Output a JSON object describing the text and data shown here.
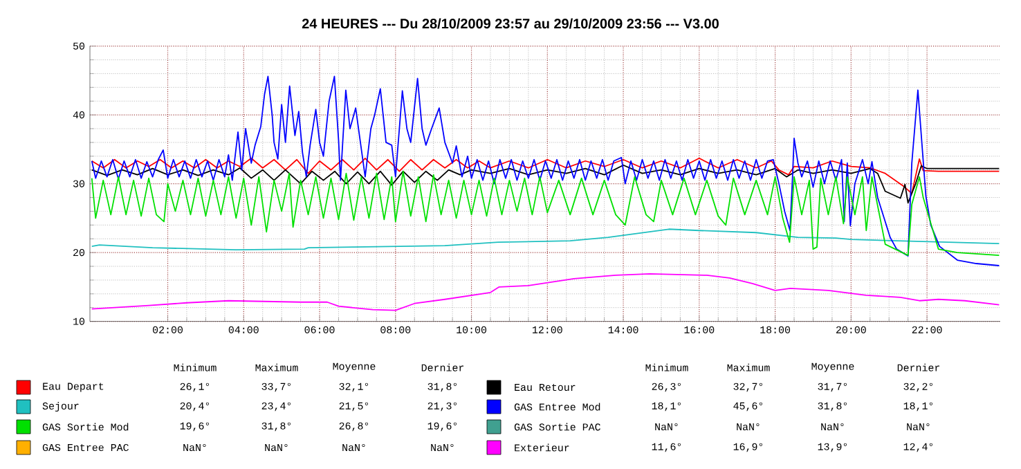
{
  "chart_data": {
    "type": "line",
    "title": "24 HEURES --- Du 28/10/2009 23:57 au 29/10/2009 23:56 --- V3.00",
    "xlim": [
      -0.05,
      23.93
    ],
    "ylim": [
      10,
      50
    ],
    "xticks": [
      {
        "value": 2,
        "label": "02:00"
      },
      {
        "value": 4,
        "label": "04:00"
      },
      {
        "value": 6,
        "label": "06:00"
      },
      {
        "value": 8,
        "label": "08:00"
      },
      {
        "value": 10,
        "label": "10:00"
      },
      {
        "value": 12,
        "label": "12:00"
      },
      {
        "value": 14,
        "label": "14:00"
      },
      {
        "value": 16,
        "label": "16:00"
      },
      {
        "value": 18,
        "label": "18:00"
      },
      {
        "value": 20,
        "label": "20:00"
      },
      {
        "value": 22,
        "label": "22:00"
      }
    ],
    "yticks": [
      10,
      20,
      30,
      40,
      50
    ],
    "grid": true,
    "legend": "bottom",
    "marker": "none",
    "line_style": "solid",
    "annotations": [
      "Minimum",
      "Maximum",
      "Moyenne",
      "Dernier",
      "Minimum",
      "Maximum",
      "Moyenne",
      "Dernier",
      "26,1°",
      "33,7°",
      "32,1°",
      "31,8°",
      "26,3°",
      "32,7°",
      "31,7°",
      "32,2°",
      "20,4°",
      "23,4°",
      "21,5°",
      "21,3°",
      "18,1°",
      "45,6°",
      "31,8°",
      "18,1°",
      "19,6°",
      "31,8°",
      "26,8°",
      "19,6°",
      "NaN°",
      "NaN°",
      "NaN°",
      "NaN°",
      "NaN°",
      "NaN°",
      "NaN°",
      "NaN°",
      "11,6°",
      "16,9°",
      "13,9°",
      "12,4°"
    ],
    "series": [
      {
        "name": "Eau Depart",
        "color": "#ff0000",
        "x": [
          0,
          0.3,
          0.6,
          0.9,
          1.2,
          1.5,
          1.8,
          2.1,
          2.4,
          2.7,
          3.0,
          3.3,
          3.6,
          3.9,
          4.2,
          4.5,
          4.8,
          5.1,
          5.4,
          5.7,
          6.0,
          6.3,
          6.6,
          6.9,
          7.2,
          7.5,
          7.8,
          8.1,
          8.4,
          8.7,
          9.0,
          9.3,
          9.6,
          9.9,
          10.2,
          10.5,
          11,
          11.5,
          12,
          12.5,
          13,
          13.5,
          14,
          14.5,
          15,
          15.5,
          16,
          16.5,
          17,
          17.5,
          17.9,
          18.1,
          18.35,
          18.5,
          19,
          19.5,
          20,
          20.5,
          20.9,
          21.39,
          21.6,
          21.8,
          21.9,
          22.3,
          23.9
        ],
        "values": [
          33.3,
          32.3,
          33.5,
          32.3,
          33.3,
          32.5,
          33.5,
          32.3,
          33.3,
          32.3,
          33.5,
          32.3,
          33.3,
          32.5,
          33.7,
          32.3,
          33.5,
          32,
          33.5,
          31.5,
          33.3,
          32,
          33.5,
          32,
          33.7,
          32,
          33.5,
          31.8,
          33.5,
          32,
          33.5,
          32.3,
          33.5,
          32.3,
          33.3,
          32.3,
          33.3,
          32.3,
          33.5,
          32.3,
          33.3,
          32.5,
          33.5,
          32.3,
          33.3,
          32.3,
          33.7,
          32.3,
          33.5,
          32.3,
          33.3,
          32,
          31.3,
          32.5,
          32.3,
          33.3,
          32.5,
          32.3,
          31.5,
          29.6,
          28.6,
          33.6,
          31.9,
          31.8,
          31.8
        ]
      },
      {
        "name": "Eau Retour",
        "color": "#000000",
        "x": [
          0,
          0.4,
          0.8,
          1.2,
          1.6,
          2.0,
          2.4,
          2.8,
          3.2,
          3.6,
          3.9,
          4.2,
          4.5,
          4.8,
          5.1,
          5.5,
          5.8,
          6.1,
          6.4,
          6.7,
          7.0,
          7.3,
          7.6,
          7.9,
          8.2,
          8.5,
          8.8,
          9.1,
          9.4,
          9.7,
          10,
          10.5,
          11,
          11.5,
          12,
          12.5,
          13,
          13.5,
          14,
          14.5,
          15,
          15.5,
          16,
          16.5,
          17,
          17.5,
          18,
          18.3,
          18.6,
          19,
          19.5,
          20,
          20.5,
          20.7,
          20.9,
          21.3,
          21.42,
          21.5,
          21.7,
          21.85,
          22,
          23.9
        ],
        "values": [
          32,
          31.2,
          32,
          31.3,
          32.2,
          31.3,
          32,
          31.2,
          32,
          31.3,
          32.3,
          30.8,
          32,
          30.5,
          32,
          30,
          31.8,
          30.5,
          31.8,
          30,
          31.7,
          30,
          31.8,
          29.8,
          31.8,
          30.2,
          31.8,
          30.5,
          32,
          31.3,
          32,
          31.5,
          32.2,
          31.3,
          32,
          31.5,
          32.2,
          31.3,
          32.7,
          31.5,
          32,
          31.3,
          32.2,
          31.5,
          32,
          31.3,
          32.2,
          31,
          32,
          31.5,
          32,
          31.5,
          32.2,
          31.5,
          28.9,
          27.9,
          29.9,
          27.2,
          30,
          32.6,
          32.2,
          32.2
        ]
      },
      {
        "name": "Sejour",
        "color": "#20c0c0",
        "x": [
          0,
          0.2,
          1.6,
          3.8,
          5.6,
          5.7,
          6.9,
          9.3,
          10.7,
          12.6,
          13.6,
          15.2,
          16.0,
          17.5,
          18.6,
          19.6,
          20.0,
          23.9
        ],
        "values": [
          20.9,
          21.1,
          20.7,
          20.4,
          20.5,
          20.7,
          20.8,
          21.0,
          21.5,
          21.7,
          22.2,
          23.4,
          23.2,
          22.9,
          22.2,
          22.1,
          21.9,
          21.3
        ]
      },
      {
        "name": "GAS Entree Mod",
        "color": "#0000ff",
        "x": [
          0,
          0.1,
          0.25,
          0.4,
          0.55,
          0.7,
          0.85,
          1.0,
          1.15,
          1.3,
          1.45,
          1.6,
          1.75,
          1.88,
          2.0,
          2.15,
          2.3,
          2.45,
          2.6,
          2.75,
          2.9,
          3.05,
          3.2,
          3.35,
          3.5,
          3.6,
          3.7,
          3.85,
          3.95,
          4.05,
          4.2,
          4.3,
          4.45,
          4.55,
          4.64,
          4.75,
          4.8,
          4.9,
          5.0,
          5.1,
          5.21,
          5.35,
          5.45,
          5.55,
          5.65,
          5.75,
          5.9,
          6.0,
          6.1,
          6.25,
          6.39,
          6.5,
          6.55,
          6.69,
          6.8,
          6.95,
          7.1,
          7.2,
          7.35,
          7.45,
          7.6,
          7.75,
          7.9,
          8.0,
          8.18,
          8.3,
          8.4,
          8.58,
          8.7,
          8.8,
          8.95,
          9.15,
          9.3,
          9.5,
          9.6,
          9.75,
          9.9,
          10.0,
          10.15,
          10.3,
          10.45,
          10.6,
          10.75,
          10.9,
          11.05,
          11.2,
          11.35,
          11.5,
          11.65,
          11.8,
          11.95,
          12.1,
          12.25,
          12.4,
          12.55,
          12.7,
          12.85,
          13.0,
          13.15,
          13.3,
          13.45,
          13.6,
          13.75,
          13.95,
          14.05,
          14.2,
          14.35,
          14.5,
          14.65,
          14.8,
          14.95,
          15.1,
          15.25,
          15.4,
          15.55,
          15.7,
          15.85,
          16.0,
          16.15,
          16.3,
          16.45,
          16.6,
          16.75,
          16.9,
          17.05,
          17.2,
          17.35,
          17.5,
          17.65,
          17.8,
          17.95,
          18.1,
          18.25,
          18.39,
          18.45,
          18.5,
          18.6,
          18.7,
          18.85,
          19.0,
          19.15,
          19.3,
          19.45,
          19.6,
          19.75,
          19.82,
          19.9,
          19.98,
          20.1,
          20.3,
          20.45,
          20.55,
          20.7,
          21.03,
          21.2,
          21.5,
          21.6,
          21.76,
          21.85,
          21.97,
          22.1,
          22.33,
          22.8,
          23.3,
          23.9
        ],
        "values": [
          33.3,
          30.8,
          33.3,
          31,
          33.5,
          30.7,
          33.3,
          31,
          33.5,
          30.8,
          33.2,
          31,
          33.5,
          34.9,
          30.8,
          33.5,
          31,
          33.3,
          30.8,
          33.5,
          31,
          33.3,
          30.5,
          33.5,
          31,
          34.2,
          30.5,
          37.5,
          32,
          38,
          33,
          35.6,
          38.3,
          43,
          45.6,
          40,
          36,
          33.6,
          41.5,
          36,
          44.2,
          37,
          40.5,
          34.5,
          31,
          35.6,
          40.8,
          36,
          34,
          42,
          45.6,
          36.3,
          30.5,
          43.6,
          38,
          41,
          35,
          31,
          38,
          40,
          43.8,
          36,
          35.6,
          31,
          43.5,
          38,
          36,
          45.3,
          38,
          35.6,
          38,
          41,
          36,
          33,
          35.5,
          31,
          34,
          30.8,
          33.5,
          30.5,
          33.3,
          30,
          33.5,
          30.8,
          33.5,
          30.5,
          33.3,
          30.8,
          33.5,
          30.5,
          33.3,
          30.8,
          33.5,
          30.5,
          33.3,
          30.8,
          33.5,
          30.5,
          33.3,
          30.8,
          33.5,
          30.5,
          33.3,
          33.8,
          30,
          33.3,
          30.5,
          33.5,
          30.8,
          33.3,
          30.5,
          33.5,
          30.8,
          33.3,
          30.5,
          33.5,
          30.8,
          33.3,
          30.5,
          33.5,
          30.8,
          33.3,
          30.5,
          33.5,
          30.8,
          33.3,
          30.5,
          33.5,
          30.8,
          33.3,
          33.5,
          30,
          26,
          23.2,
          30,
          36.6,
          33,
          31,
          33.3,
          29.5,
          33.3,
          30,
          33.3,
          30.5,
          33.5,
          24.5,
          33,
          23.9,
          30,
          33.5,
          30,
          33.2,
          28,
          22.2,
          20.5,
          19.5,
          33,
          43.6,
          37,
          28.2,
          24,
          20.9,
          18.9,
          18.4,
          18.1
        ]
      },
      {
        "name": "GAS Sortie Mod",
        "color": "#00e000",
        "x": [
          0,
          0.1,
          0.3,
          0.5,
          0.7,
          0.9,
          1.1,
          1.3,
          1.5,
          1.7,
          1.9,
          2.0,
          2.2,
          2.4,
          2.6,
          2.8,
          3.0,
          3.2,
          3.4,
          3.6,
          3.8,
          4.0,
          4.2,
          4.4,
          4.6,
          4.8,
          5.0,
          5.2,
          5.3,
          5.5,
          5.7,
          5.9,
          6.1,
          6.3,
          6.5,
          6.7,
          6.9,
          7.1,
          7.3,
          7.5,
          7.7,
          7.9,
          8.0,
          8.2,
          8.4,
          8.6,
          8.8,
          9.0,
          9.2,
          9.4,
          9.6,
          9.8,
          10.0,
          10.2,
          10.4,
          10.6,
          10.8,
          11.0,
          11.2,
          11.4,
          11.6,
          11.8,
          12.0,
          12.3,
          12.6,
          12.9,
          13.2,
          13.5,
          13.8,
          14.05,
          14.3,
          14.6,
          14.8,
          15.0,
          15.3,
          15.6,
          15.9,
          16.2,
          16.5,
          16.7,
          16.9,
          17.2,
          17.5,
          17.8,
          18.0,
          18.2,
          18.38,
          18.5,
          18.7,
          18.9,
          19.0,
          19.1,
          19.2,
          19.4,
          19.6,
          19.8,
          19.9,
          20.1,
          20.3,
          20.4,
          20.55,
          20.9,
          21.5,
          21.6,
          21.8,
          21.9,
          22.3,
          22.8,
          23.9
        ],
        "values": [
          30.8,
          25,
          30.5,
          25.5,
          31,
          25.5,
          30.5,
          25.3,
          30.8,
          25.5,
          24.5,
          30,
          26,
          30.5,
          25.5,
          30.8,
          25.3,
          30.5,
          25.5,
          31,
          25,
          30.8,
          24,
          31,
          23,
          30.5,
          26,
          31.5,
          23.7,
          30.5,
          25.5,
          31,
          25,
          30.8,
          24.8,
          31.5,
          24.7,
          31,
          25,
          31.5,
          24.8,
          31,
          24.5,
          31.8,
          25.3,
          31,
          24.5,
          31.3,
          25.5,
          30.5,
          25,
          30.5,
          25.5,
          30.5,
          25.3,
          30.8,
          25.5,
          30.5,
          26,
          30.8,
          25.5,
          31,
          25.8,
          30.5,
          25.5,
          30.8,
          25.5,
          30.5,
          25.5,
          24,
          31,
          25.5,
          24.5,
          30.5,
          25.5,
          30.8,
          25.5,
          30.5,
          25.3,
          24,
          30.8,
          25.5,
          30.5,
          25.5,
          31,
          25,
          21.5,
          31,
          25.5,
          30.5,
          20.5,
          20.8,
          30.8,
          25.5,
          31,
          24.2,
          31,
          25.5,
          31,
          23.2,
          31,
          21.2,
          19.6,
          27,
          31,
          28,
          20.5,
          20,
          19.6
        ]
      },
      {
        "name": "GAS Sortie PAC",
        "color": "#40a090"
      },
      {
        "name": "GAS Entree PAC",
        "color": "#ffb000"
      },
      {
        "name": "Exterieur",
        "color": "#ff00ff",
        "x": [
          0,
          1.5,
          2.5,
          3.6,
          5.5,
          6.2,
          6.5,
          7.4,
          8.0,
          8.5,
          9.3,
          10.5,
          10.73,
          11.5,
          12.7,
          13.8,
          14.7,
          16.2,
          16.8,
          17.4,
          18.0,
          18.4,
          19.4,
          20.4,
          21.3,
          21.8,
          22.3,
          23.0,
          23.9
        ],
        "values": [
          11.8,
          12.3,
          12.7,
          13.0,
          12.8,
          12.8,
          12.2,
          11.7,
          11.6,
          12.6,
          13.2,
          14.2,
          15.0,
          15.2,
          16.2,
          16.7,
          16.9,
          16.7,
          16.3,
          15.5,
          14.5,
          14.8,
          14.5,
          13.8,
          13.5,
          13.0,
          13.2,
          13.0,
          12.4
        ]
      }
    ]
  }
}
